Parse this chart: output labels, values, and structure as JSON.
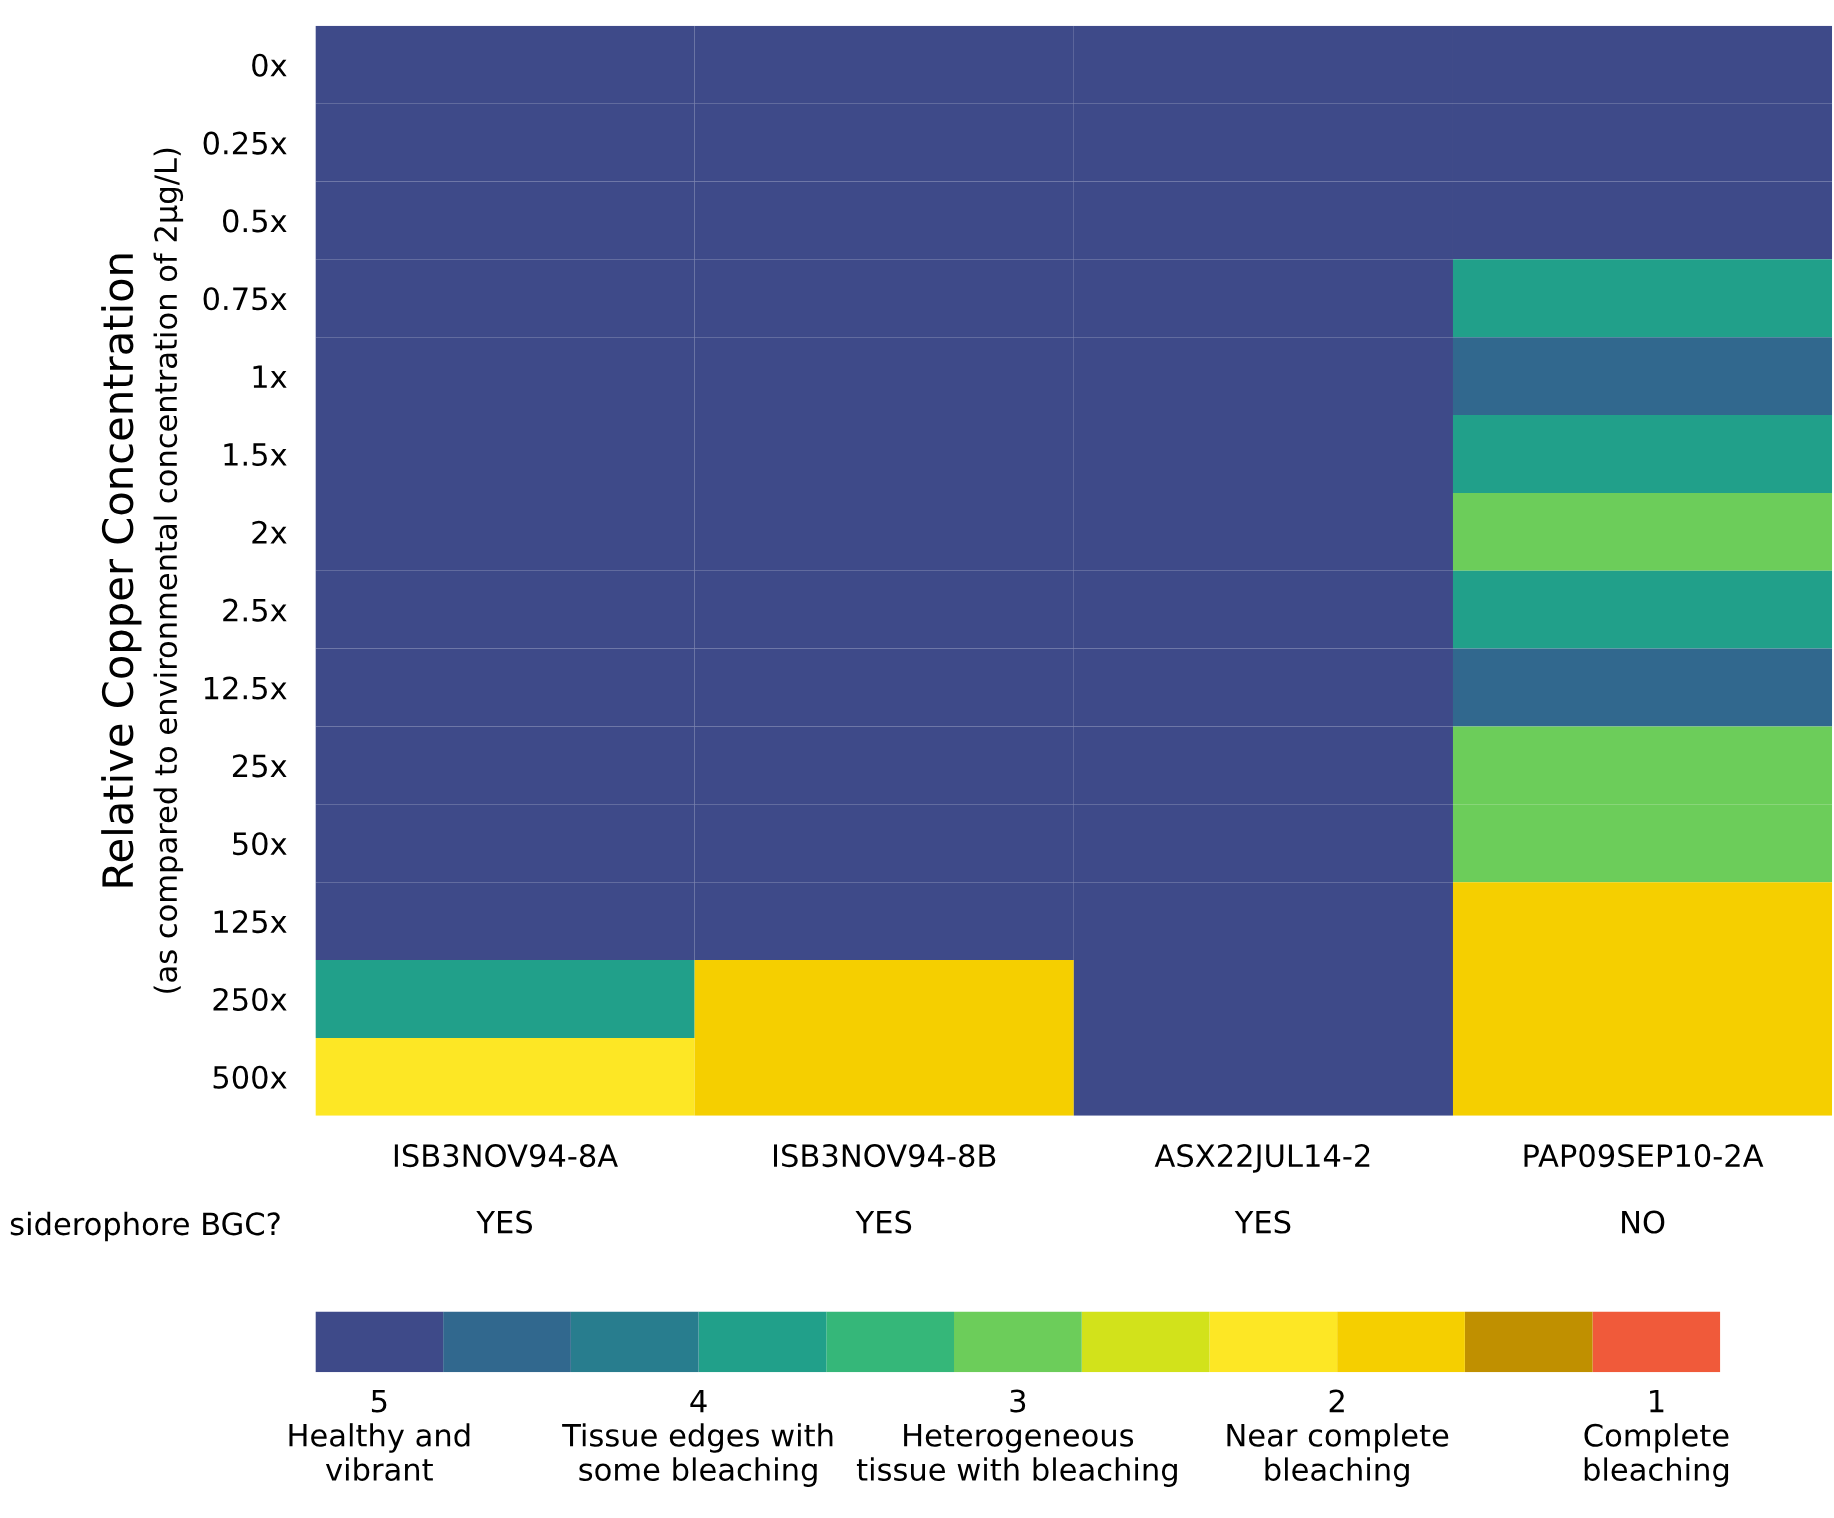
{
  "chart_data": {
    "type": "heatmap",
    "ylabel": "Relative Copper Concentration\n(as compared to environmental concentration of 2μg/L)",
    "categories": [
      "ISB3NOV94-8A",
      "ISB3NOV94-8B",
      "ASX22JUL14-2",
      "PAP09SEP10-2A"
    ],
    "y_categories": [
      "0x",
      "0.25x",
      "0.5x",
      "0.75x",
      "1x",
      "1.5x",
      "2x",
      "2.5x",
      "12.5x",
      "25x",
      "50x",
      "125x",
      "250x",
      "500x"
    ],
    "cells": [
      [
        5,
        5,
        5,
        5
      ],
      [
        5,
        5,
        5,
        5
      ],
      [
        5,
        5,
        5,
        5
      ],
      [
        5,
        5,
        5,
        3.8
      ],
      [
        5,
        5,
        5,
        4.6
      ],
      [
        5,
        5,
        5,
        3.8
      ],
      [
        5,
        5,
        5,
        3.0
      ],
      [
        5,
        5,
        5,
        3.8
      ],
      [
        5,
        5,
        5,
        4.6
      ],
      [
        5,
        5,
        5,
        3.0
      ],
      [
        5,
        5,
        5,
        3.0
      ],
      [
        5,
        5,
        5,
        1.8
      ],
      [
        3.8,
        1.8,
        5,
        1.8
      ],
      [
        2.2,
        1.8,
        5,
        1.8
      ]
    ],
    "colors": [
      "#3e4a89",
      "#31688e",
      "#287d8e",
      "#21a08a",
      "#35b779",
      "#6ccd5a",
      "#d2e21b",
      "#fde725",
      "#f5cf00",
      "#c09000",
      "#f05a3a"
    ],
    "clim": [
      5.2,
      0.8
    ],
    "cticks": [
      {
        "value": 5,
        "label": "5\nHealthy and\nvibrant"
      },
      {
        "value": 4,
        "label": "4\nTissue edges with\nsome bleaching"
      },
      {
        "value": 3,
        "label": "3\nHeterogeneous\ntissue with bleaching"
      },
      {
        "value": 2,
        "label": "2\nNear complete\nbleaching"
      },
      {
        "value": 1,
        "label": "1\nComplete\nbleaching"
      }
    ],
    "annotations": [
      "siderophore BGC?",
      "YES",
      "YES",
      "YES",
      "NO"
    ]
  }
}
